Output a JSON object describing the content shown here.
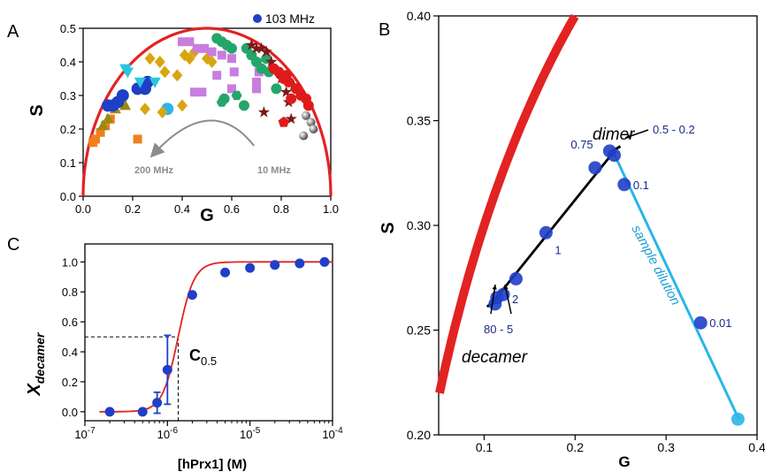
{
  "colors": {
    "curve": "#e32222",
    "marker": "#1f3fc7",
    "light": "#29b6e8",
    "axis": "#000000",
    "gray_arrow": "#8c8c8c",
    "sample_text": "#1a9fd4",
    "annot_text": "#1a2a8a"
  },
  "chart_data": [
    {
      "id": "A",
      "type": "scatter",
      "panel_label": "A",
      "xlabel": "G",
      "ylabel": "S",
      "xlim": [
        0,
        1
      ],
      "ylim": [
        0,
        0.5
      ],
      "xticks": [
        "0.0",
        "0.2",
        "0.4",
        "0.6",
        "0.8",
        "1.0"
      ],
      "yticks": [
        "0.0",
        "0.1",
        "0.2",
        "0.3",
        "0.4",
        "0.5"
      ],
      "legend": "103 MHz",
      "legend_position": "top-right",
      "universal_circle": true,
      "arrow_labels": {
        "left": "200 MHz",
        "right": "10 MHz"
      },
      "series": [
        {
          "marker": "square",
          "color": "#f07f1e",
          "points": [
            [
              0.04,
              0.16
            ],
            [
              0.05,
              0.17
            ],
            [
              0.07,
              0.19
            ],
            [
              0.09,
              0.21
            ],
            [
              0.11,
              0.23
            ],
            [
              0.22,
              0.17
            ]
          ]
        },
        {
          "marker": "triangle-up",
          "color": "#9a8a10",
          "points": [
            [
              0.08,
              0.21
            ],
            [
              0.1,
              0.23
            ],
            [
              0.13,
              0.26
            ],
            [
              0.15,
              0.28
            ],
            [
              0.17,
              0.27
            ]
          ]
        },
        {
          "marker": "circle",
          "color": "#1f3fc7",
          "points": [
            [
              0.1,
              0.27
            ],
            [
              0.12,
              0.27
            ],
            [
              0.14,
              0.28
            ],
            [
              0.16,
              0.3
            ],
            [
              0.22,
              0.32
            ],
            [
              0.24,
              0.33
            ],
            [
              0.26,
              0.34
            ],
            [
              0.25,
              0.32
            ]
          ]
        },
        {
          "marker": "triangle-down",
          "color": "#29c6e0",
          "points": [
            [
              0.18,
              0.37
            ],
            [
              0.23,
              0.34
            ],
            [
              0.29,
              0.34
            ],
            [
              0.17,
              0.38
            ]
          ]
        },
        {
          "marker": "circle",
          "color": "#29b6e8",
          "points": [
            [
              0.34,
              0.26
            ]
          ]
        },
        {
          "marker": "diamond",
          "color": "#d9a50f",
          "points": [
            [
              0.27,
              0.41
            ],
            [
              0.31,
              0.4
            ],
            [
              0.33,
              0.37
            ],
            [
              0.38,
              0.36
            ],
            [
              0.41,
              0.42
            ],
            [
              0.43,
              0.41
            ],
            [
              0.45,
              0.43
            ],
            [
              0.5,
              0.41
            ],
            [
              0.52,
              0.4
            ],
            [
              0.4,
              0.27
            ],
            [
              0.25,
              0.26
            ],
            [
              0.32,
              0.25
            ]
          ]
        },
        {
          "marker": "square",
          "color": "#c87de0",
          "points": [
            [
              0.4,
              0.46
            ],
            [
              0.43,
              0.46
            ],
            [
              0.46,
              0.44
            ],
            [
              0.49,
              0.44
            ],
            [
              0.52,
              0.43
            ],
            [
              0.56,
              0.42
            ],
            [
              0.6,
              0.41
            ],
            [
              0.61,
              0.37
            ],
            [
              0.7,
              0.34
            ],
            [
              0.71,
              0.37
            ],
            [
              0.54,
              0.36
            ],
            [
              0.45,
              0.31
            ],
            [
              0.48,
              0.31
            ],
            [
              0.6,
              0.32
            ],
            [
              0.7,
              0.32
            ]
          ]
        },
        {
          "marker": "circle",
          "color": "#25a56a",
          "points": [
            [
              0.54,
              0.47
            ],
            [
              0.56,
              0.46
            ],
            [
              0.58,
              0.45
            ],
            [
              0.6,
              0.44
            ],
            [
              0.66,
              0.44
            ],
            [
              0.68,
              0.42
            ],
            [
              0.7,
              0.4
            ],
            [
              0.72,
              0.38
            ],
            [
              0.74,
              0.41
            ],
            [
              0.75,
              0.37
            ],
            [
              0.57,
              0.29
            ],
            [
              0.65,
              0.27
            ],
            [
              0.78,
              0.32
            ]
          ]
        },
        {
          "marker": "hexagon",
          "color": "#25a56a",
          "points": [
            [
              0.62,
              0.3
            ],
            [
              0.56,
              0.28
            ]
          ]
        },
        {
          "marker": "star",
          "color": "#7a1a1a",
          "points": [
            [
              0.68,
              0.45
            ],
            [
              0.7,
              0.44
            ],
            [
              0.72,
              0.44
            ],
            [
              0.74,
              0.43
            ],
            [
              0.76,
              0.4
            ],
            [
              0.8,
              0.35
            ],
            [
              0.82,
              0.31
            ],
            [
              0.83,
              0.28
            ],
            [
              0.85,
              0.33
            ],
            [
              0.73,
              0.25
            ],
            [
              0.84,
              0.23
            ]
          ]
        },
        {
          "marker": "circle",
          "color": "#e01a1a",
          "points": [
            [
              0.77,
              0.38
            ],
            [
              0.79,
              0.37
            ],
            [
              0.81,
              0.35
            ],
            [
              0.82,
              0.36
            ],
            [
              0.83,
              0.34
            ],
            [
              0.86,
              0.32
            ],
            [
              0.88,
              0.3
            ],
            [
              0.9,
              0.29
            ],
            [
              0.91,
              0.27
            ],
            [
              0.84,
              0.29
            ]
          ]
        },
        {
          "marker": "pentagon",
          "color": "#e01a1a",
          "points": [
            [
              0.81,
              0.22
            ]
          ]
        },
        {
          "marker": "sphere",
          "color": "#909090",
          "points": [
            [
              0.9,
              0.24
            ],
            [
              0.92,
              0.22
            ],
            [
              0.93,
              0.2
            ],
            [
              0.89,
              0.18
            ]
          ]
        }
      ]
    },
    {
      "id": "C",
      "type": "scatter",
      "panel_label": "C",
      "xlabel": "[hPrx1] (M)",
      "ylabel_main": "X",
      "ylabel_sub": "decamer",
      "xscale": "log",
      "xlim": [
        1e-07,
        0.0001
      ],
      "ylim": [
        -0.06,
        1.12
      ],
      "xticks": [
        {
          "v": 1e-07,
          "base": "10",
          "exp": "-7"
        },
        {
          "v": 1e-06,
          "base": "10",
          "exp": "-6"
        },
        {
          "v": 1e-05,
          "base": "10",
          "exp": "-5"
        },
        {
          "v": 0.0001,
          "base": "10",
          "exp": "-4"
        }
      ],
      "yticks": [
        "0.0",
        "0.2",
        "0.4",
        "0.6",
        "0.8",
        "1.0"
      ],
      "c05_label": "C",
      "c05_sub": "0.5",
      "c05": 1.35e-06,
      "fit_curve": {
        "type": "hill",
        "midpoint": 1.35e-06,
        "hill_n": 4.5
      },
      "points": [
        {
          "x": 2e-07,
          "y": 0.0
        },
        {
          "x": 5e-07,
          "y": 0.0
        },
        {
          "x": 7.5e-07,
          "y": 0.06,
          "err": 0.07
        },
        {
          "x": 1e-06,
          "y": 0.28,
          "err": 0.23
        },
        {
          "x": 2e-06,
          "y": 0.78
        },
        {
          "x": 5e-06,
          "y": 0.93
        },
        {
          "x": 1e-05,
          "y": 0.96
        },
        {
          "x": 2e-05,
          "y": 0.98
        },
        {
          "x": 4e-05,
          "y": 0.99
        },
        {
          "x": 8e-05,
          "y": 1.0
        }
      ]
    },
    {
      "id": "B",
      "type": "scatter",
      "panel_label": "B",
      "xlabel": "G",
      "ylabel": "S",
      "xlim": [
        0.05,
        0.4
      ],
      "ylim": [
        0.2,
        0.4
      ],
      "xticks": [
        "0.1",
        "0.2",
        "0.3",
        "0.4"
      ],
      "xtick_values": [
        0.1,
        0.2,
        0.3,
        0.4
      ],
      "yticks": [
        "0.20",
        "0.25",
        "0.30",
        "0.35",
        "0.40"
      ],
      "ytick_values": [
        0.2,
        0.25,
        0.3,
        0.35,
        0.4
      ],
      "universal_circle": true,
      "black_line": [
        [
          0.108,
          0.2625
        ],
        [
          0.245,
          0.3365
        ]
      ],
      "blue_line": [
        [
          0.243,
          0.334
        ],
        [
          0.38,
          0.2075
        ]
      ],
      "points": [
        {
          "x": 0.112,
          "y": 0.2625,
          "label": ""
        },
        {
          "x": 0.114,
          "y": 0.2655,
          "label": ""
        },
        {
          "x": 0.121,
          "y": 0.267,
          "label": "2"
        },
        {
          "x": 0.135,
          "y": 0.2745,
          "label": ""
        },
        {
          "x": 0.168,
          "y": 0.2965,
          "label": "1"
        },
        {
          "x": 0.222,
          "y": 0.3275,
          "label": ""
        },
        {
          "x": 0.238,
          "y": 0.3355,
          "label": "0.75"
        },
        {
          "x": 0.243,
          "y": 0.3335,
          "label": ""
        },
        {
          "x": 0.254,
          "y": 0.3195,
          "label": "0.1"
        },
        {
          "x": 0.338,
          "y": 0.2535,
          "label": "0.01"
        },
        {
          "x": 0.379,
          "y": 0.2075,
          "label": "",
          "color": "light"
        }
      ],
      "annotations": {
        "dimer": "dimer",
        "decamer": "decamer",
        "range_top": "0.5 - 0.2",
        "range_bottom": "80 - 5",
        "sample_dilution": "sample dilution"
      }
    }
  ]
}
